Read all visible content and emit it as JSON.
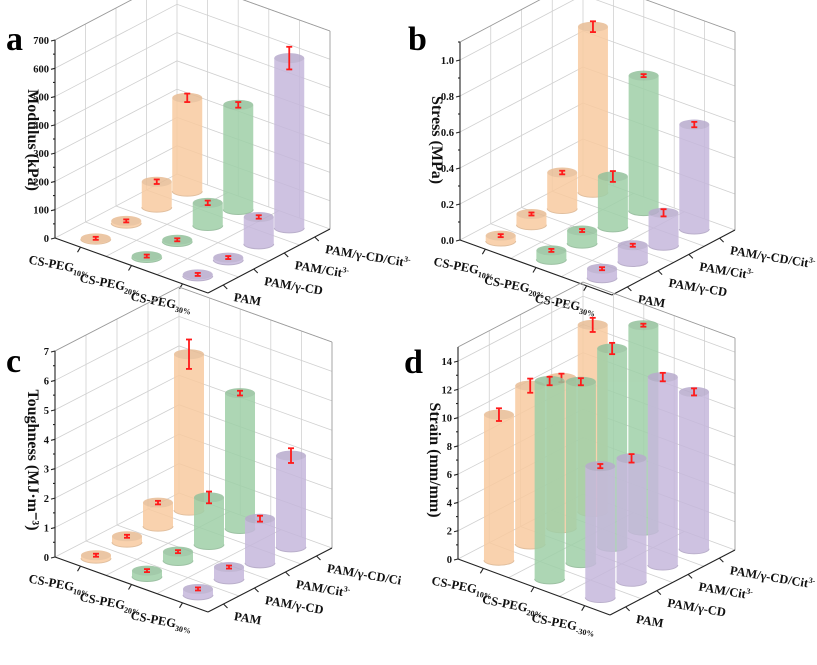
{
  "figure": {
    "colors": {
      "peg10": "#f9cba0",
      "peg20": "#9fd0a8",
      "peg30": "#c6b8dc",
      "error_bar": "#ff1a1a"
    }
  },
  "chart_data": [
    {
      "type": "bar",
      "panel_label": "a",
      "title": "",
      "ylabel": "Modulus (kPa)",
      "zlim": [
        0,
        700
      ],
      "zticks": [
        "0",
        "100",
        "200",
        "300",
        "400",
        "500",
        "600",
        "700"
      ],
      "peg_categories": [
        "CS-PEG10%",
        "CS-PEG20%",
        "CS-PEG30%"
      ],
      "peg_labels": [
        {
          "main": "CS-PEG",
          "sub": "10%"
        },
        {
          "main": "CS-PEG",
          "sub": "20%"
        },
        {
          "main": "CS-PEG",
          "sub": "30%"
        }
      ],
      "pam_categories": [
        "PAM",
        "PAM/γ-CD",
        "PAM/Cit3-",
        "PAM/γ-CD/Cit3-"
      ],
      "pam_labels": [
        {
          "main": "PAM",
          "sup": ""
        },
        {
          "main": "PAM/γ-CD",
          "sup": ""
        },
        {
          "main": "PAM/Cit",
          "sup": "3-"
        },
        {
          "main": "PAM/γ-CD/Cit",
          "sup": "3-"
        }
      ],
      "series": [
        {
          "name": "CS-PEG10%",
          "values": [
            3,
            8,
            90,
            330
          ],
          "errors": [
            2,
            3,
            8,
            15
          ]
        },
        {
          "name": "CS-PEG20%",
          "values": [
            5,
            6,
            80,
            370
          ],
          "errors": [
            2,
            3,
            8,
            10
          ]
        },
        {
          "name": "CS-PEG30%",
          "values": [
            5,
            8,
            95,
            600
          ],
          "errors": [
            2,
            3,
            6,
            40
          ]
        }
      ],
      "grid": true
    },
    {
      "type": "bar",
      "panel_label": "b",
      "title": "",
      "ylabel": "Stress (MPa)",
      "zlim": [
        0,
        1.1
      ],
      "zticks": [
        "0.0",
        "0.2",
        "0.4",
        "0.6",
        "0.8",
        "1.0"
      ],
      "peg_categories": [
        "CS-PEG10%",
        "CS-PEG20%",
        "CS-PEG30%"
      ],
      "peg_labels": [
        {
          "main": "CS-PEG",
          "sub": "10%"
        },
        {
          "main": "CS-PEG",
          "sub": "20%"
        },
        {
          "main": "CS-PEG",
          "sub": "30%"
        }
      ],
      "pam_categories": [
        "PAM",
        "PAM/γ-CD",
        "PAM/Cit3-",
        "PAM/γ-CD/Cit3-"
      ],
      "pam_labels": [
        {
          "main": "PAM",
          "sup": ""
        },
        {
          "main": "PAM/γ-CD",
          "sup": ""
        },
        {
          "main": "PAM/Cit",
          "sup": "3-"
        },
        {
          "main": "PAM/γ-CD/Cit",
          "sup": "3-"
        }
      ],
      "series": [
        {
          "name": "CS-PEG10%",
          "values": [
            0.03,
            0.06,
            0.2,
            0.92
          ],
          "errors": [
            0.005,
            0.005,
            0.01,
            0.03
          ]
        },
        {
          "name": "CS-PEG20%",
          "values": [
            0.05,
            0.07,
            0.28,
            0.75
          ],
          "errors": [
            0.005,
            0.005,
            0.03,
            0.005
          ]
        },
        {
          "name": "CS-PEG30%",
          "values": [
            0.05,
            0.09,
            0.18,
            0.58
          ],
          "errors": [
            0.005,
            0.005,
            0.02,
            0.015
          ]
        }
      ],
      "grid": true
    },
    {
      "type": "bar",
      "panel_label": "c",
      "title": "",
      "ylabel": "Toughness (MJ·m⁻³)",
      "zlim": [
        0,
        7
      ],
      "zticks": [
        "0",
        "1",
        "2",
        "3",
        "4",
        "5",
        "6",
        "7"
      ],
      "peg_categories": [
        "CS-PEG10%",
        "CS-PEG20%",
        "CS-PEG30%"
      ],
      "peg_labels": [
        {
          "main": "CS-PEG",
          "sub": "10%"
        },
        {
          "main": "CS-PEG",
          "sub": "20%"
        },
        {
          "main": "CS-PEG",
          "sub": "30%"
        }
      ],
      "pam_categories": [
        "PAM",
        "PAM/γ-CD",
        "PAM/Cit3-",
        "PAM/γ-CD/Ci"
      ],
      "pam_labels": [
        {
          "main": "PAM",
          "sup": ""
        },
        {
          "main": "PAM/γ-CD",
          "sup": ""
        },
        {
          "main": "PAM/Cit",
          "sup": "3-"
        },
        {
          "main": "PAM/γ-CD/Ci",
          "sup": ""
        }
      ],
      "series": [
        {
          "name": "CS-PEG10%",
          "values": [
            0.1,
            0.2,
            0.8,
            5.3
          ],
          "errors": [
            0.03,
            0.05,
            0.06,
            0.5
          ]
        },
        {
          "name": "CS-PEG20%",
          "values": [
            0.2,
            0.3,
            1.6,
            4.6
          ],
          "errors": [
            0.04,
            0.05,
            0.2,
            0.08
          ]
        },
        {
          "name": "CS-PEG30%",
          "values": [
            0.2,
            0.4,
            1.5,
            3.1
          ],
          "errors": [
            0.04,
            0.05,
            0.1,
            0.25
          ]
        }
      ],
      "grid": true
    },
    {
      "type": "bar",
      "panel_label": "d",
      "title": "",
      "ylabel": "Strain (mm/mm)",
      "zlim": [
        0,
        15
      ],
      "zticks": [
        "0",
        "2",
        "4",
        "6",
        "8",
        "10",
        "12",
        "14"
      ],
      "peg_categories": [
        "CS-PEG10%",
        "CS-PEG20%",
        "CS-PEG-30%"
      ],
      "peg_labels": [
        {
          "main": "CS-PEG",
          "sub": "10%"
        },
        {
          "main": "CS-PEG",
          "sub": "20%"
        },
        {
          "main": "CS-PEG",
          "sub": "-30%"
        }
      ],
      "pam_categories": [
        "PAM",
        "PAM/γ-CD",
        "PAM/Cit3-",
        "PAM/γ-CD/Cit3-"
      ],
      "pam_labels": [
        {
          "main": "PAM",
          "sup": ""
        },
        {
          "main": "PAM/γ-CD",
          "sup": ""
        },
        {
          "main": "PAM/Cit",
          "sup": "3-"
        },
        {
          "main": "PAM/γ-CD/Cit",
          "sup": "3-"
        }
      ],
      "series": [
        {
          "name": "CS-PEG10%",
          "values": [
            10.3,
            11.2,
            10.6,
            13.2
          ],
          "errors": [
            0.45,
            0.5,
            0.3,
            0.5
          ]
        },
        {
          "name": "CS-PEG20%",
          "values": [
            14.0,
            12.8,
            14.0,
            14.5
          ],
          "errors": [
            0.3,
            0.25,
            0.4,
            0.1
          ]
        },
        {
          "name": "CS-PEG30%",
          "values": [
            9.3,
            8.7,
            13.3,
            11.1
          ],
          "errors": [
            0.15,
            0.3,
            0.3,
            0.25
          ]
        }
      ],
      "grid": true
    }
  ]
}
